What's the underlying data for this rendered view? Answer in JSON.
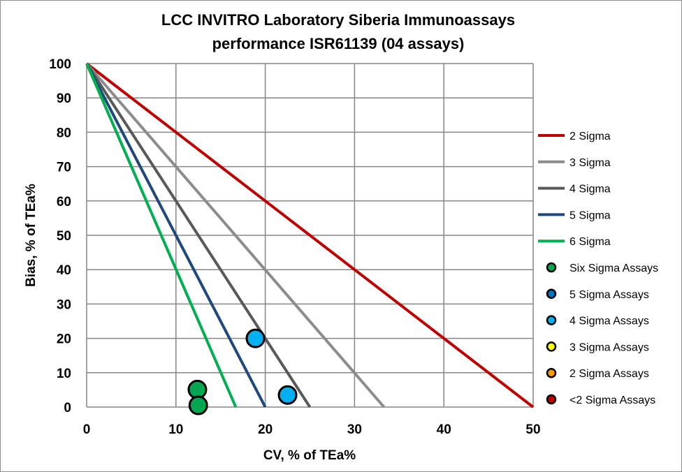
{
  "chart_data": {
    "type": "scatter",
    "title": [
      "LCC INVITRO Laboratory Siberia Immunoassays",
      "performance ISR61139 (04 assays)"
    ],
    "xlabel": "CV, % of TEa%",
    "ylabel": "Bias, % of TEa%",
    "xlim": [
      0,
      50
    ],
    "ylim": [
      0,
      100
    ],
    "xticks": [
      "0",
      "10",
      "20",
      "30",
      "40",
      "50"
    ],
    "yticks": [
      "0",
      "10",
      "20",
      "30",
      "40",
      "50",
      "60",
      "70",
      "80",
      "90",
      "100"
    ],
    "grid": true,
    "legend_position": "right",
    "lines": [
      {
        "name": "2 Sigma",
        "color": "#C00000",
        "points": [
          [
            0,
            100
          ],
          [
            50,
            0
          ]
        ]
      },
      {
        "name": "3 Sigma",
        "color": "#8C8C8C",
        "points": [
          [
            0,
            100
          ],
          [
            33.3,
            0
          ]
        ]
      },
      {
        "name": "4 Sigma",
        "color": "#595959",
        "points": [
          [
            0,
            100
          ],
          [
            25,
            0
          ]
        ]
      },
      {
        "name": "5 Sigma",
        "color": "#1F497D",
        "points": [
          [
            0,
            100
          ],
          [
            20,
            0
          ]
        ]
      },
      {
        "name": "6 Sigma",
        "color": "#00B050",
        "points": [
          [
            0,
            100
          ],
          [
            16.7,
            0
          ]
        ]
      }
    ],
    "point_series": [
      {
        "name": "Six Sigma Assays",
        "color": "#00A650",
        "points": [
          [
            12.4,
            5.1
          ],
          [
            12.5,
            0.5
          ]
        ]
      },
      {
        "name": "5 Sigma Assays",
        "color": "#0070C0",
        "points": []
      },
      {
        "name": "4 Sigma Assays",
        "color": "#00B0F0",
        "points": [
          [
            18.9,
            20
          ],
          [
            22.5,
            3.5
          ]
        ]
      },
      {
        "name": "3 Sigma Assays",
        "color": "#FFFF00",
        "points": []
      },
      {
        "name": "2 Sigma Assays",
        "color": "#FF9900",
        "points": []
      },
      {
        "name": "<2 Sigma Assays",
        "color": "#C00000",
        "points": []
      }
    ]
  }
}
